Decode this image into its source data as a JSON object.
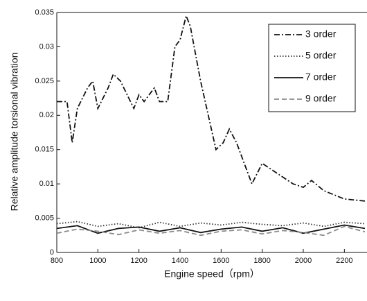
{
  "chart_data": {
    "type": "line",
    "xlabel": "Engine speed（rpm）",
    "ylabel": "Relative amplitude torsional vibration",
    "xlim": [
      800,
      2300
    ],
    "ylim": [
      0,
      0.035
    ],
    "xticks": [
      800,
      1000,
      1200,
      1400,
      1600,
      1800,
      2000,
      2200
    ],
    "yticks": [
      0,
      0.005,
      0.01,
      0.015,
      0.02,
      0.025,
      0.03,
      0.035
    ],
    "legend": "upper-right",
    "series": [
      {
        "name": "3 order",
        "color": "#111111",
        "linestyle": "dashdot",
        "x": [
          800,
          850,
          875,
          900,
          950,
          975,
          1000,
          1050,
          1075,
          1110,
          1175,
          1200,
          1225,
          1275,
          1300,
          1340,
          1375,
          1400,
          1430,
          1450,
          1500,
          1575,
          1610,
          1640,
          1675,
          1750,
          1800,
          1850,
          1950,
          2000,
          2040,
          2100,
          2200,
          2300
        ],
        "values": [
          0.022,
          0.022,
          0.016,
          0.021,
          0.024,
          0.025,
          0.021,
          0.024,
          0.026,
          0.025,
          0.021,
          0.023,
          0.022,
          0.024,
          0.022,
          0.022,
          0.03,
          0.031,
          0.0345,
          0.033,
          0.025,
          0.015,
          0.016,
          0.018,
          0.016,
          0.01,
          0.013,
          0.012,
          0.01,
          0.0095,
          0.0105,
          0.009,
          0.0078,
          0.0075
        ]
      },
      {
        "name": "5 order",
        "color": "#333333",
        "linestyle": "dotted",
        "x": [
          800,
          900,
          1000,
          1100,
          1200,
          1300,
          1400,
          1500,
          1600,
          1700,
          1800,
          1900,
          2000,
          2100,
          2200,
          2300
        ],
        "values": [
          0.0042,
          0.0045,
          0.0038,
          0.0042,
          0.0036,
          0.0044,
          0.0038,
          0.0043,
          0.004,
          0.0044,
          0.0041,
          0.0039,
          0.0043,
          0.0038,
          0.0044,
          0.0042
        ]
      },
      {
        "name": "7 order",
        "color": "#111111",
        "linestyle": "solid",
        "x": [
          800,
          900,
          1000,
          1100,
          1200,
          1300,
          1400,
          1500,
          1600,
          1700,
          1800,
          1900,
          2000,
          2100,
          2200,
          2300
        ],
        "values": [
          0.0035,
          0.0039,
          0.0028,
          0.0035,
          0.0037,
          0.0031,
          0.0036,
          0.0029,
          0.0034,
          0.0037,
          0.0031,
          0.0036,
          0.0028,
          0.0034,
          0.004,
          0.0035
        ]
      },
      {
        "name": "9 order",
        "color": "#8a8a8a",
        "linestyle": "dashed",
        "x": [
          800,
          900,
          1000,
          1100,
          1200,
          1300,
          1400,
          1500,
          1600,
          1700,
          1800,
          1900,
          2000,
          2100,
          2200,
          2300
        ],
        "values": [
          0.0028,
          0.0034,
          0.0031,
          0.0026,
          0.0033,
          0.0028,
          0.0032,
          0.0025,
          0.0031,
          0.0033,
          0.0027,
          0.0032,
          0.0029,
          0.0025,
          0.0038,
          0.003
        ]
      }
    ]
  }
}
